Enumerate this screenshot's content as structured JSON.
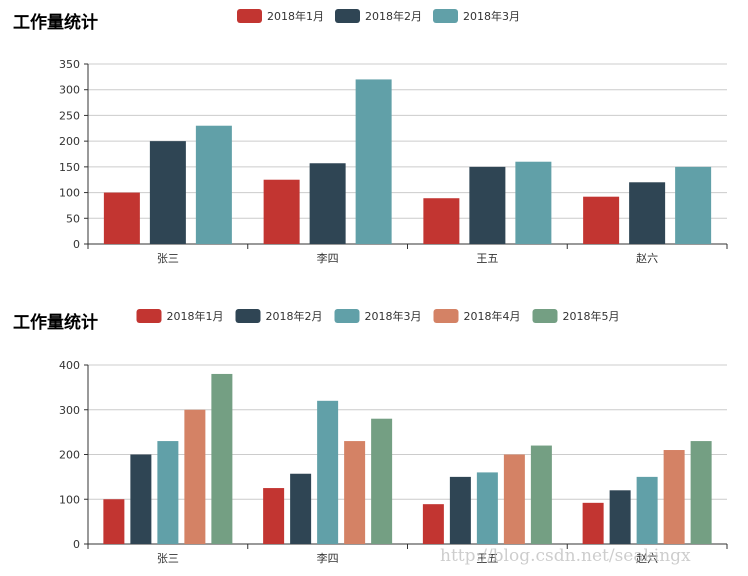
{
  "watermark": "http://blog.csdn.net/seakingx",
  "chart_data": [
    {
      "type": "bar",
      "title": "工作量统计",
      "categories": [
        "张三",
        "李四",
        "王五",
        "赵六"
      ],
      "series": [
        {
          "name": "2018年1月",
          "color": "#c23531",
          "values": [
            100,
            125,
            89,
            92
          ]
        },
        {
          "name": "2018年2月",
          "color": "#2f4554",
          "values": [
            200,
            157,
            150,
            120
          ]
        },
        {
          "name": "2018年3月",
          "color": "#61a0a8",
          "values": [
            230,
            320,
            160,
            150
          ]
        }
      ],
      "ylim": [
        0,
        350
      ],
      "yticks": [
        0,
        50,
        100,
        150,
        200,
        250,
        300,
        350
      ],
      "xlabel": "",
      "ylabel": "",
      "grid": true,
      "legend_position": "top-center"
    },
    {
      "type": "bar",
      "title": "工作量统计",
      "categories": [
        "张三",
        "李四",
        "王五",
        "赵六"
      ],
      "series": [
        {
          "name": "2018年1月",
          "color": "#c23531",
          "values": [
            100,
            125,
            89,
            92
          ]
        },
        {
          "name": "2018年2月",
          "color": "#2f4554",
          "values": [
            200,
            157,
            150,
            120
          ]
        },
        {
          "name": "2018年3月",
          "color": "#61a0a8",
          "values": [
            230,
            320,
            160,
            150
          ]
        },
        {
          "name": "2018年4月",
          "color": "#d48265",
          "values": [
            300,
            230,
            200,
            210
          ]
        },
        {
          "name": "2018年5月",
          "color": "#749f83",
          "values": [
            380,
            280,
            220,
            230
          ]
        }
      ],
      "ylim": [
        0,
        400
      ],
      "yticks": [
        0,
        100,
        200,
        300,
        400
      ],
      "xlabel": "",
      "ylabel": "",
      "grid": true,
      "legend_position": "top-center"
    }
  ]
}
